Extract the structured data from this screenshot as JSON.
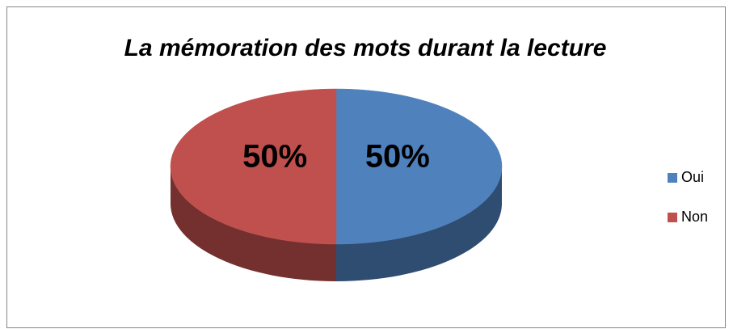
{
  "chart_data": {
    "type": "pie",
    "title": "La mémoration des mots durant la lecture",
    "categories": [
      "Oui",
      "Non"
    ],
    "values": [
      50,
      50
    ],
    "value_labels": [
      "50%",
      "50%"
    ],
    "colors": [
      "#4f81bd",
      "#c0504d"
    ],
    "legend": "right",
    "three_d": true
  }
}
